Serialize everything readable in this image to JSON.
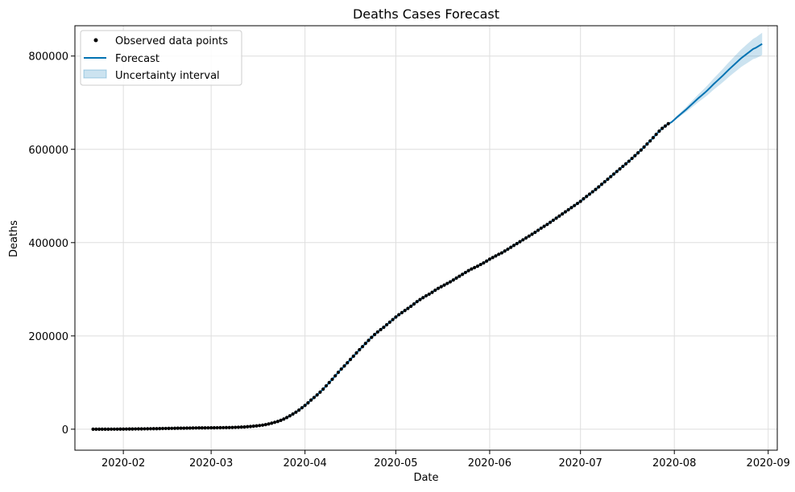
{
  "chart_data": {
    "type": "line",
    "title": "Deaths Cases Forecast",
    "xlabel": "Date",
    "ylabel": "Deaths",
    "xlim": [
      "2020-01-16",
      "2020-09-04"
    ],
    "ylim": [
      -45000,
      865000
    ],
    "x_ticks": [
      "2020-02-01",
      "2020-03-01",
      "2020-04-01",
      "2020-05-01",
      "2020-06-01",
      "2020-07-01",
      "2020-08-01",
      "2020-09-01"
    ],
    "x_tick_labels": [
      "2020-02",
      "2020-03",
      "2020-04",
      "2020-05",
      "2020-06",
      "2020-07",
      "2020-08",
      "2020-09"
    ],
    "y_ticks": [
      0,
      200000,
      400000,
      600000,
      800000
    ],
    "y_tick_labels": [
      "0",
      "200000",
      "400000",
      "600000",
      "800000"
    ],
    "grid": true,
    "legend_position": "top-left",
    "colors": {
      "observed": "#000000",
      "forecast": "#0072B2",
      "interval": "#0072B2"
    },
    "series": [
      {
        "name": "Observed data points",
        "kind": "scatter",
        "start_date": "2020-01-22",
        "end_date": "2020-07-27",
        "values": [
          17,
          18,
          26,
          42,
          56,
          82,
          131,
          133,
          171,
          213,
          259,
          362,
          426,
          492,
          564,
          634,
          719,
          806,
          906,
          1013,
          1113,
          1118,
          1371,
          1523,
          1666,
          1770,
          1868,
          2007,
          2122,
          2247,
          2251,
          2458,
          2469,
          2629,
          2708,
          2770,
          2814,
          2872,
          2941,
          2996,
          3085,
          3160,
          3254,
          3348,
          3460,
          3558,
          3802,
          3988,
          4262,
          4615,
          4720,
          5404,
          5819,
          6440,
          7126,
          7905,
          8733,
          9867,
          11299,
          13000,
          14766,
          16637,
          18992,
          21834,
          25000,
          28750,
          32500,
          36500,
          41000,
          46000,
          51000,
          56500,
          62500,
          68000,
          73500,
          79500,
          86000,
          93000,
          100000,
          107000,
          114500,
          122000,
          129000,
          135500,
          142500,
          149500,
          156500,
          163500,
          170500,
          177000,
          184000,
          190500,
          197000,
          203000,
          208500,
          213500,
          218500,
          224000,
          229500,
          235000,
          240500,
          245500,
          250000,
          254500,
          259000,
          263500,
          268500,
          273500,
          278000,
          282000,
          286000,
          289500,
          293500,
          298000,
          302000,
          305500,
          309000,
          312500,
          316000,
          320000,
          324000,
          328000,
          332000,
          336000,
          340000,
          343500,
          346500,
          349500,
          353000,
          356500,
          360500,
          364500,
          368000,
          371500,
          375000,
          378000,
          382000,
          386000,
          390000,
          394000,
          398000,
          402000,
          406000,
          410000,
          414000,
          418000,
          422000,
          426500,
          431000,
          435000,
          439000,
          443500,
          448000,
          452500,
          457000,
          461500,
          466000,
          470500,
          475000,
          479500,
          484000,
          488500,
          494000,
          499000,
          504000,
          509000,
          514000,
          519500,
          525000,
          530500,
          536000,
          541500,
          547000,
          552500,
          558000,
          563500,
          569000,
          574500,
          580500,
          586500,
          592500,
          598500,
          605000,
          611500,
          618000,
          625000,
          632000,
          639000,
          645000,
          650000,
          655000
        ]
      },
      {
        "name": "Forecast",
        "kind": "line",
        "start_date": "2020-01-22",
        "end_date": "2020-08-26",
        "observed_fit": true,
        "future_values": [
          658000,
          663500,
          669500,
          675000,
          680500,
          686000,
          692000,
          698000,
          704000,
          710000,
          715500,
          721000,
          727000,
          733500,
          740000,
          746000,
          752000,
          758000,
          764500,
          771000,
          777000,
          783000,
          789000,
          795000,
          800000,
          805000,
          810000,
          815000,
          818000,
          822000,
          826000
        ]
      },
      {
        "name": "Uncertainty interval",
        "kind": "band",
        "widths_start": 1000,
        "widths_end": 24000
      }
    ]
  }
}
